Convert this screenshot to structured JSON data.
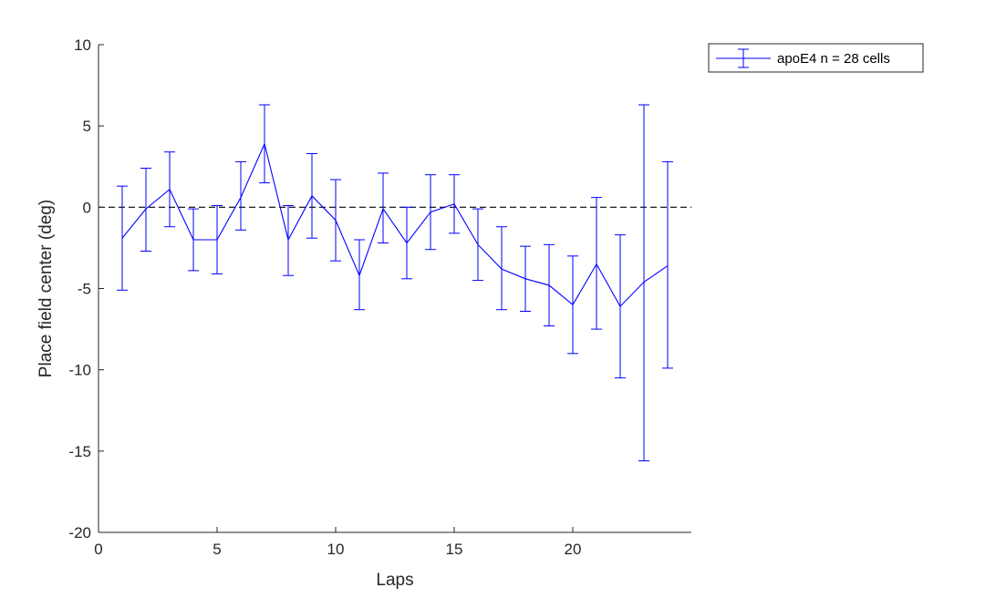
{
  "chart_data": {
    "type": "line",
    "xlabel": "Laps",
    "ylabel": "Place field center (deg)",
    "xlim": [
      0,
      25
    ],
    "ylim": [
      -20,
      10
    ],
    "xticks": [
      0,
      5,
      10,
      15,
      20
    ],
    "yticks": [
      10,
      5,
      0,
      -5,
      -10,
      -15,
      -20
    ],
    "grid": false,
    "legend_position": "top-right, outside plot",
    "reference_line": {
      "y": 0,
      "style": "dashed",
      "color": "#000000"
    },
    "series": [
      {
        "name": "apoE4 n = 28 cells",
        "color": "#0000ff",
        "x": [
          1,
          2,
          3,
          4,
          5,
          6,
          7,
          8,
          9,
          10,
          11,
          12,
          13,
          14,
          15,
          16,
          17,
          18,
          19,
          20,
          21,
          22,
          23,
          24
        ],
        "y": [
          -1.9,
          -0.1,
          1.1,
          -2.0,
          -2.0,
          0.6,
          3.9,
          -2.0,
          0.7,
          -0.8,
          -4.2,
          -0.1,
          -2.2,
          -0.3,
          0.2,
          -2.3,
          -3.8,
          -4.4,
          -4.8,
          -6.0,
          -3.5,
          -6.1,
          -4.6,
          -3.6
        ],
        "yerr_upper": [
          1.3,
          2.4,
          3.4,
          -0.1,
          0.1,
          2.8,
          6.3,
          0.1,
          3.3,
          1.7,
          -2.0,
          2.1,
          0.0,
          2.0,
          2.0,
          -0.1,
          -1.2,
          -2.4,
          -2.3,
          -3.0,
          0.6,
          -1.7,
          6.3,
          2.8
        ],
        "yerr_lower": [
          -5.1,
          -2.7,
          -1.2,
          -3.9,
          -4.1,
          -1.4,
          1.5,
          -4.2,
          -1.9,
          -3.3,
          -6.3,
          -2.2,
          -4.4,
          -2.6,
          -1.6,
          -4.5,
          -6.3,
          -6.4,
          -7.3,
          -9.0,
          -7.5,
          -10.5,
          -15.6,
          -9.9
        ]
      }
    ]
  }
}
